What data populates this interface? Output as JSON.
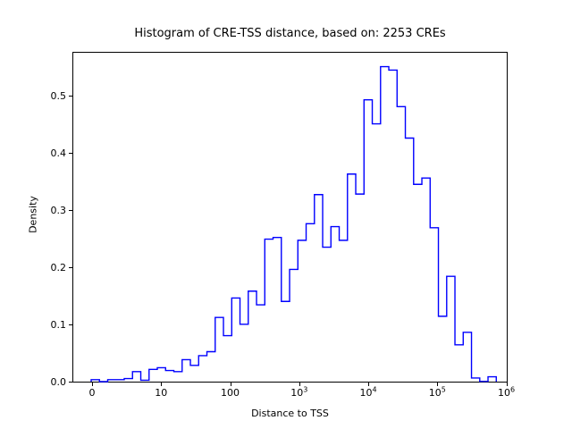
{
  "title": "Histogram of CRE-TSS distance, based on: 2253 CREs",
  "chart_data": {
    "type": "bar",
    "subtype": "step-histogram",
    "title": "Histogram of CRE-TSS distance, based on: 2253 CREs",
    "xlabel": "Distance to TSS",
    "ylabel": "Density",
    "sample_count": 2253,
    "x_scale": "symlog-decades",
    "grid": false,
    "legend": "none",
    "line_color": "#0000ff",
    "spine_color": "#000000",
    "background_color": "#ffffff",
    "u_range": [
      -0.285,
      6.019
    ],
    "y_range": [
      0,
      0.579
    ],
    "x_ticks": [
      {
        "text": "0",
        "u": 0
      },
      {
        "text": "10",
        "u": 1
      },
      {
        "text": "100",
        "u": 2
      },
      {
        "text": "10",
        "sup": "3",
        "u": 3
      },
      {
        "text": "10",
        "sup": "4",
        "u": 4
      },
      {
        "text": "10",
        "sup": "5",
        "u": 5
      },
      {
        "text": "10",
        "sup": "6",
        "u": 6
      }
    ],
    "y_ticks": [
      {
        "text": "0.0",
        "v": 0.0
      },
      {
        "text": "0.1",
        "v": 0.1
      },
      {
        "text": "0.2",
        "v": 0.2
      },
      {
        "text": "0.3",
        "v": 0.3
      },
      {
        "text": "0.4",
        "v": 0.4
      },
      {
        "text": "0.5",
        "v": 0.5
      }
    ],
    "bin_edges_u": [
      -0.0129,
      0.1068,
      0.2265,
      0.3463,
      0.466,
      0.5858,
      0.7055,
      0.8252,
      0.945,
      1.0647,
      1.1845,
      1.3042,
      1.4239,
      1.5437,
      1.6634,
      1.7832,
      1.9029,
      2.0227,
      2.1424,
      2.2621,
      2.3819,
      2.5016,
      2.6214,
      2.7411,
      2.8608,
      2.9806,
      3.1003,
      3.2201,
      3.3398,
      3.4595,
      3.5793,
      3.699,
      3.8188,
      3.9385,
      4.0583,
      4.178,
      4.2977,
      4.4175,
      4.5372,
      4.657,
      4.7767,
      4.8964,
      5.0162,
      5.1359,
      5.2557,
      5.3754,
      5.4952,
      5.6149,
      5.7346,
      5.8544
    ],
    "densities": [
      0.005,
      0.0,
      0.005,
      0.005,
      0.007,
      0.019,
      0.004,
      0.023,
      0.026,
      0.021,
      0.019,
      0.04,
      0.03,
      0.047,
      0.054,
      0.114,
      0.082,
      0.148,
      0.102,
      0.16,
      0.136,
      0.251,
      0.254,
      0.142,
      0.198,
      0.249,
      0.278,
      0.329,
      0.237,
      0.273,
      0.249,
      0.365,
      0.33,
      0.495,
      0.453,
      0.553,
      0.547,
      0.483,
      0.428,
      0.347,
      0.358,
      0.271,
      0.116,
      0.186,
      0.066,
      0.088,
      0.008,
      0.002,
      0.01
    ]
  }
}
